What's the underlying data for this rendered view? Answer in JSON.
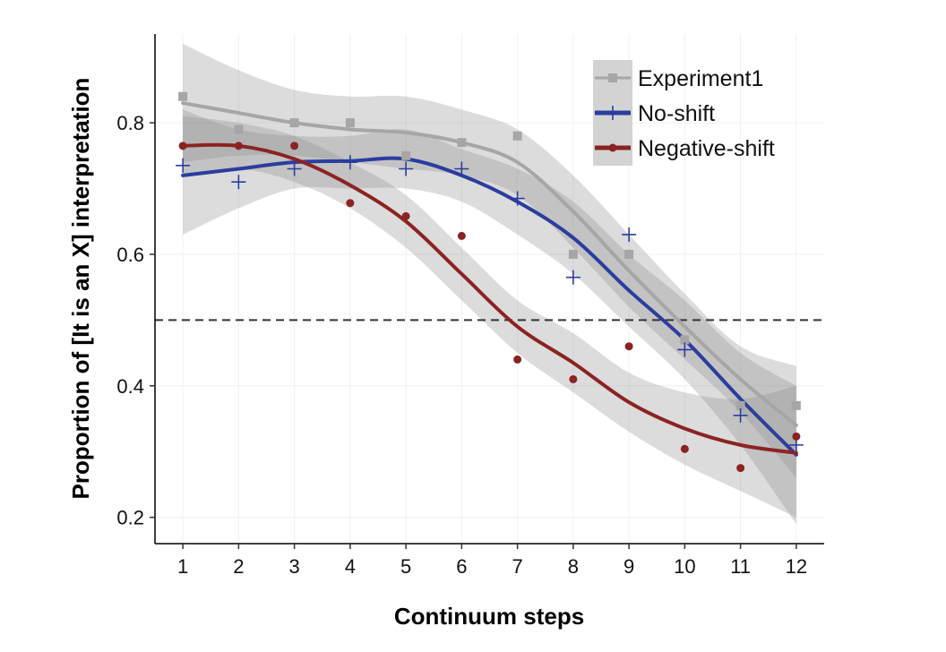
{
  "chart_data": {
    "type": "scatter",
    "xlabel": "Continuum steps",
    "ylabel": "Proportion of [It is an X] interpretation",
    "xlim": [
      0.5,
      12.5
    ],
    "ylim": [
      0.16,
      0.935
    ],
    "xticks": [
      1,
      2,
      3,
      4,
      5,
      6,
      7,
      8,
      9,
      10,
      11,
      12
    ],
    "yticks": [
      0.2,
      0.4,
      0.6,
      0.8
    ],
    "ytick_labels": [
      "0.2",
      "0.4",
      "0.6",
      "0.8"
    ],
    "reference_line": {
      "y": 0.5,
      "style": "dashed",
      "color": "#333333"
    },
    "grid": true,
    "legend_position": "top-right",
    "series": [
      {
        "name": "Experiment1",
        "color": "#a6a6a6",
        "marker": "square",
        "x": [
          1,
          2,
          3,
          4,
          5,
          6,
          7,
          8,
          9,
          10,
          11,
          12
        ],
        "points": [
          0.84,
          0.79,
          0.8,
          0.8,
          0.75,
          0.77,
          0.78,
          0.6,
          0.6,
          0.47,
          0.37,
          0.37
        ],
        "smooth": [
          0.83,
          0.815,
          0.8,
          0.79,
          0.785,
          0.77,
          0.74,
          0.665,
          0.575,
          0.49,
          0.41,
          0.34
        ],
        "band_low": [
          0.74,
          0.75,
          0.75,
          0.74,
          0.73,
          0.72,
          0.69,
          0.61,
          0.52,
          0.44,
          0.36,
          0.26
        ],
        "band_high": [
          0.92,
          0.88,
          0.85,
          0.84,
          0.84,
          0.82,
          0.79,
          0.72,
          0.63,
          0.54,
          0.46,
          0.43
        ]
      },
      {
        "name": "No-shift",
        "color": "#2b3d9e",
        "marker": "plus",
        "x": [
          1,
          2,
          3,
          4,
          5,
          6,
          7,
          8,
          9,
          10,
          11,
          12
        ],
        "points": [
          0.735,
          0.71,
          0.73,
          0.74,
          0.73,
          0.73,
          0.685,
          0.565,
          0.63,
          0.455,
          0.355,
          0.31
        ],
        "smooth": [
          0.72,
          0.73,
          0.74,
          0.742,
          0.745,
          0.72,
          0.68,
          0.625,
          0.545,
          0.47,
          0.38,
          0.295
        ],
        "band_low": [
          0.63,
          0.67,
          0.7,
          0.7,
          0.7,
          0.68,
          0.63,
          0.57,
          0.49,
          0.41,
          0.31,
          0.19
        ],
        "band_high": [
          0.82,
          0.79,
          0.78,
          0.78,
          0.79,
          0.76,
          0.73,
          0.68,
          0.6,
          0.53,
          0.45,
          0.4
        ]
      },
      {
        "name": "Negative-shift",
        "color": "#8b2323",
        "marker": "circle",
        "x": [
          1,
          2,
          3,
          4,
          5,
          6,
          7,
          8,
          9,
          10,
          11,
          12
        ],
        "points": [
          0.765,
          0.765,
          0.765,
          0.678,
          0.658,
          0.628,
          0.44,
          0.41,
          0.46,
          0.304,
          0.275,
          0.323
        ],
        "smooth": [
          0.765,
          0.765,
          0.745,
          0.705,
          0.65,
          0.57,
          0.49,
          0.435,
          0.375,
          0.335,
          0.31,
          0.298
        ],
        "band_low": [
          0.72,
          0.73,
          0.71,
          0.67,
          0.61,
          0.53,
          0.45,
          0.39,
          0.33,
          0.28,
          0.24,
          0.2
        ],
        "band_high": [
          0.81,
          0.8,
          0.78,
          0.74,
          0.69,
          0.61,
          0.53,
          0.48,
          0.42,
          0.39,
          0.38,
          0.4
        ]
      }
    ]
  }
}
